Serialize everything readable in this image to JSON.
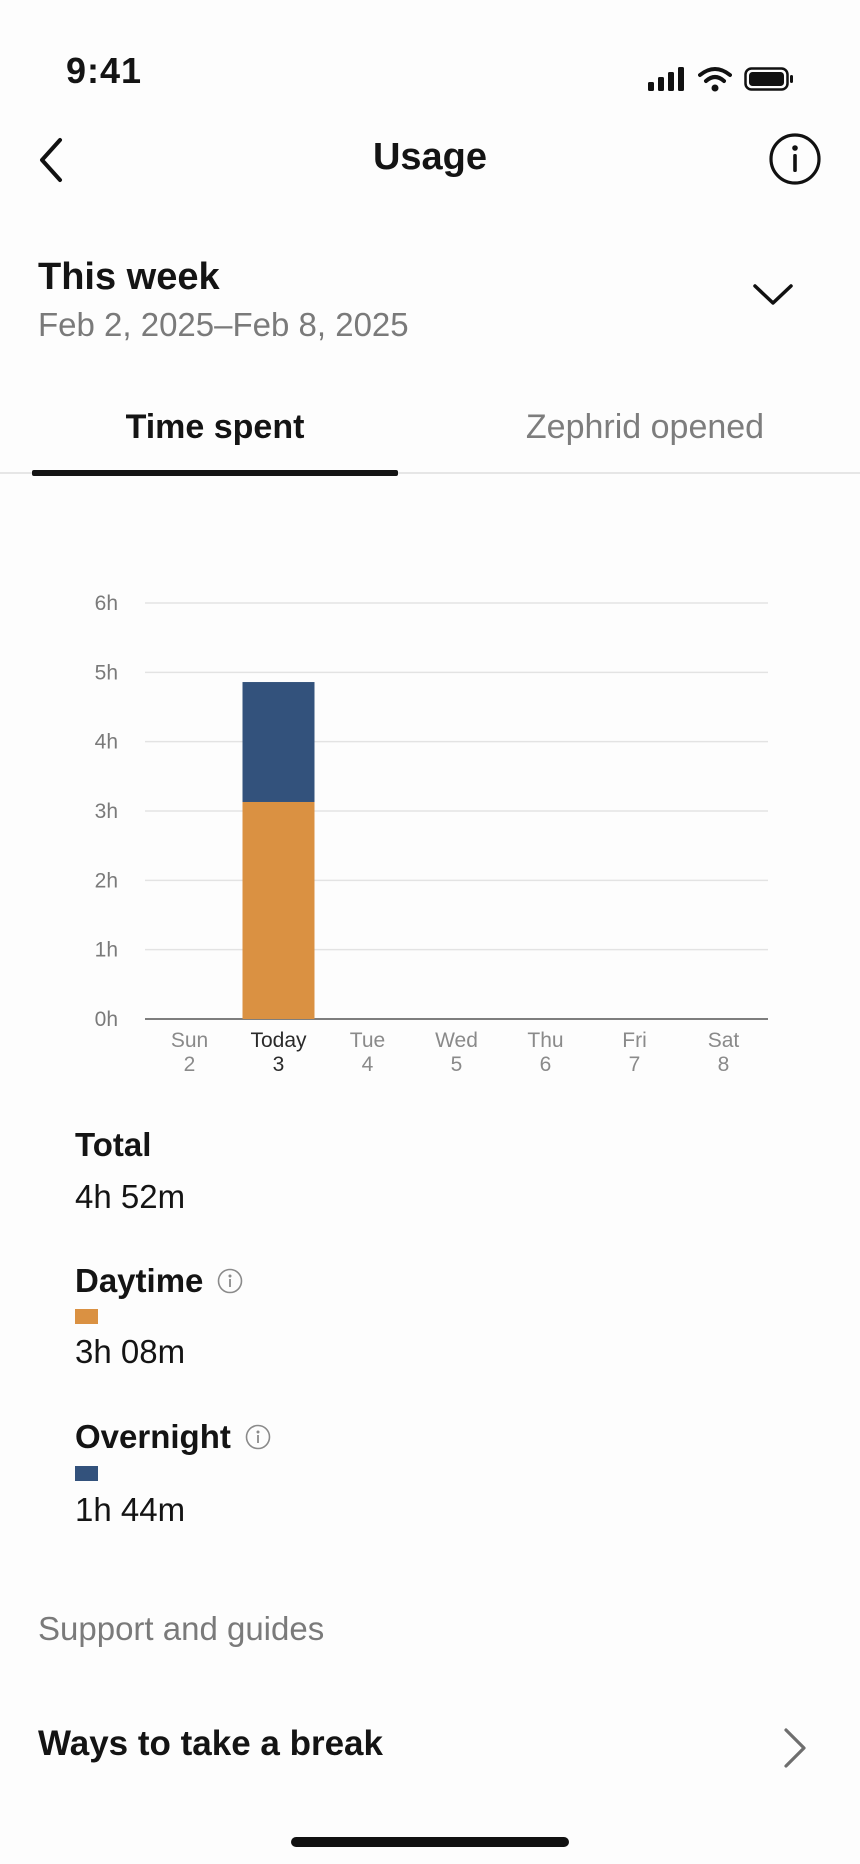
{
  "status_bar": {
    "time": "9:41",
    "icons": [
      "signal-icon",
      "wifi-icon",
      "battery-icon"
    ]
  },
  "header": {
    "title": "Usage",
    "back_icon": "chevron-left-icon",
    "info_icon": "info-icon"
  },
  "week": {
    "title": "This week",
    "range": "Feb 2, 2025–Feb 8, 2025",
    "toggle_icon": "chevron-down-icon"
  },
  "tabs": [
    {
      "label": "Time spent",
      "active": true
    },
    {
      "label": "Zephrid opened",
      "active": false
    }
  ],
  "colors": {
    "daytime": "#DA9142",
    "overnight": "#33527C",
    "grid": "#E3E3E3",
    "axis": "#555555"
  },
  "chart_data": {
    "type": "bar",
    "stacked": true,
    "categories": [
      {
        "day": "Sun",
        "date": "2"
      },
      {
        "day": "Today",
        "date": "3"
      },
      {
        "day": "Tue",
        "date": "4"
      },
      {
        "day": "Wed",
        "date": "5"
      },
      {
        "day": "Thu",
        "date": "6"
      },
      {
        "day": "Fri",
        "date": "7"
      },
      {
        "day": "Sat",
        "date": "8"
      }
    ],
    "series": [
      {
        "key": "daytime",
        "values": [
          0,
          3.13,
          0,
          0,
          0,
          0,
          0
        ]
      },
      {
        "key": "overnight",
        "values": [
          0,
          1.73,
          0,
          0,
          0,
          0,
          0
        ]
      }
    ],
    "yticks": [
      "0h",
      "1h",
      "2h",
      "3h",
      "4h",
      "5h",
      "6h"
    ],
    "ylim": [
      0,
      6
    ],
    "grid": true,
    "highlight_category": "Today"
  },
  "stats": {
    "total": {
      "label": "Total",
      "value": "4h 52m"
    },
    "daytime": {
      "label": "Daytime",
      "value": "3h 08m"
    },
    "overnight": {
      "label": "Overnight",
      "value": "1h 44m"
    }
  },
  "support": {
    "section_label": "Support and guides",
    "items": [
      {
        "label": "Ways to take a break"
      }
    ]
  }
}
